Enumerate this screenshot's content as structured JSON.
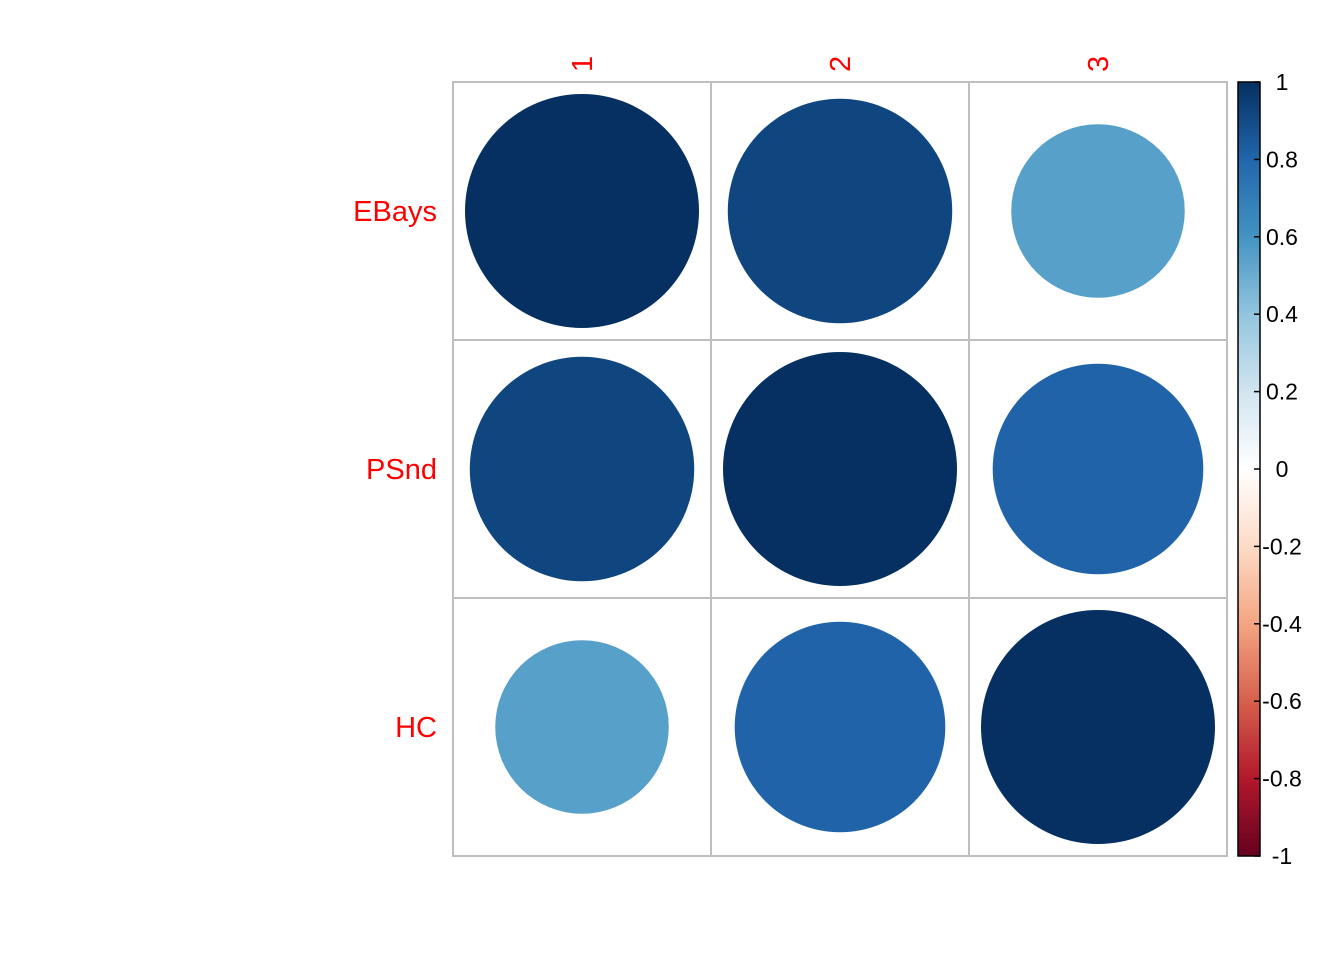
{
  "chart_data": {
    "type": "heatmap",
    "title": "",
    "row_labels": [
      "EBays",
      "PSnd",
      "HC"
    ],
    "col_labels": [
      "1",
      "2",
      "3"
    ],
    "matrix": [
      [
        1.0,
        0.92,
        0.55
      ],
      [
        0.92,
        1.0,
        0.81
      ],
      [
        0.55,
        0.81,
        1.0
      ]
    ],
    "colorbar": {
      "range": [
        -1,
        1
      ],
      "ticks": [
        "1",
        "0.8",
        "0.6",
        "0.4",
        "0.2",
        "0",
        "-0.2",
        "-0.4",
        "-0.6",
        "-0.8",
        "-1"
      ],
      "tick_values": [
        1,
        0.8,
        0.6,
        0.4,
        0.2,
        0,
        -0.2,
        -0.4,
        -0.6,
        -0.8,
        -1
      ],
      "position": "right"
    },
    "label_color": "#FF0000",
    "grid_color": "#BEBEBE",
    "palette": [
      "#67001F",
      "#B2182B",
      "#D6604D",
      "#F4A582",
      "#FDDBC7",
      "#FFFFFF",
      "#D1E5F0",
      "#92C5DE",
      "#4393C3",
      "#2166AC",
      "#053061"
    ]
  }
}
